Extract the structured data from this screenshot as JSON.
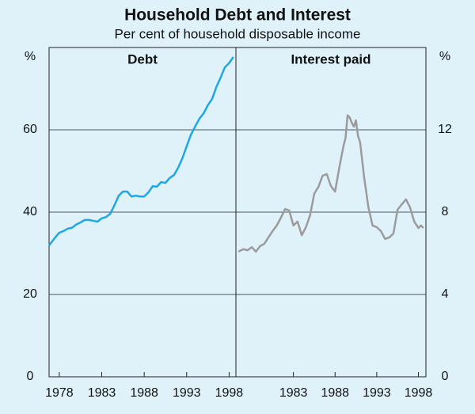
{
  "header": {
    "title": "Household Debt and Interest",
    "subtitle": "Per cent of household disposable income"
  },
  "chart_data": [
    {
      "type": "line",
      "title": "Debt",
      "y_label": "%",
      "y_axis_side": "left",
      "color": "#1ea7e4",
      "xlim": [
        1976.8,
        1998.8
      ],
      "xticks": [
        1978,
        1983,
        1988,
        1993,
        1998
      ],
      "ylim": [
        0,
        80
      ],
      "yticks": [
        0,
        20,
        40,
        60
      ],
      "grid": true,
      "x": [
        1976.8,
        1977.5,
        1978,
        1978.5,
        1979,
        1979.5,
        1980,
        1980.5,
        1981,
        1981.5,
        1982,
        1982.5,
        1983,
        1983.5,
        1984,
        1984.5,
        1985,
        1985.5,
        1986,
        1986.5,
        1987,
        1987.5,
        1988,
        1988.5,
        1989,
        1989.5,
        1990,
        1990.5,
        1991,
        1991.5,
        1992,
        1992.5,
        1993,
        1993.5,
        1994,
        1994.5,
        1995,
        1995.5,
        1996,
        1996.5,
        1997,
        1997.5,
        1998,
        1998.5
      ],
      "values": [
        31.9,
        33.8,
        35,
        35.4,
        36,
        36.2,
        37,
        37.5,
        38.1,
        38.1,
        37.9,
        37.7,
        38.5,
        38.8,
        39.6,
        41.7,
        44,
        45,
        45,
        43.8,
        44,
        43.8,
        43.8,
        44.8,
        46.3,
        46.2,
        47.3,
        47.1,
        48.3,
        49,
        50.8,
        53.1,
        56,
        58.8,
        60.8,
        62.7,
        64,
        66,
        67.5,
        70.4,
        72.7,
        75.2,
        76.2,
        77.7
      ]
    },
    {
      "type": "line",
      "title": "Interest paid",
      "y_label": "%",
      "y_axis_side": "right",
      "color": "#9b9b9b",
      "xlim": [
        1976.1,
        1998.9
      ],
      "xticks": [
        1983,
        1988,
        1993,
        1998
      ],
      "ylim": [
        0,
        16
      ],
      "yticks": [
        0,
        4,
        8,
        12
      ],
      "grid": true,
      "x": [
        1976.4,
        1977,
        1977.5,
        1978,
        1978.5,
        1979,
        1979.5,
        1980,
        1980.5,
        1981,
        1981.5,
        1982,
        1982.5,
        1983,
        1983.5,
        1984,
        1984.5,
        1985,
        1985.5,
        1986,
        1986.5,
        1987,
        1987.5,
        1988,
        1988.5,
        1989,
        1989.25,
        1989.5,
        1989.75,
        1990,
        1990.25,
        1990.5,
        1990.75,
        1991,
        1991.5,
        1992,
        1992.5,
        1993,
        1993.5,
        1994,
        1994.5,
        1995,
        1995.5,
        1996,
        1996.5,
        1997,
        1997.5,
        1998,
        1998.3,
        1998.6
      ],
      "values": [
        6.08,
        6.2,
        6.15,
        6.3,
        6.08,
        6.35,
        6.46,
        6.77,
        7.08,
        7.35,
        7.73,
        8.15,
        8.08,
        7.35,
        7.54,
        6.88,
        7.27,
        7.85,
        8.9,
        9.23,
        9.77,
        9.85,
        9.27,
        9,
        10.15,
        11.2,
        11.6,
        12.7,
        12.6,
        12.35,
        12.15,
        12.46,
        11.7,
        11.4,
        9.65,
        8.23,
        7.35,
        7.27,
        7.08,
        6.7,
        6.77,
        6.96,
        8.12,
        8.38,
        8.62,
        8.23,
        7.54,
        7.23,
        7.35,
        7.23
      ]
    }
  ]
}
